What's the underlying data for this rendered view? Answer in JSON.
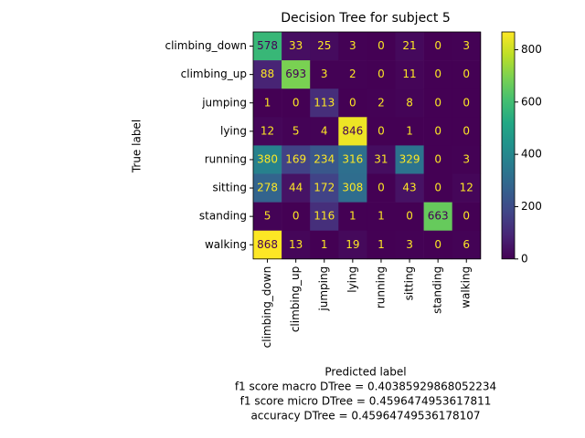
{
  "chart_data": {
    "type": "heatmap",
    "title": "Decision Tree for subject 5",
    "xlabel": "Predicted label",
    "ylabel": "True label",
    "annotations": [
      "f1 score macro DTree = 0.40385929868052234",
      "f1 score micro DTree = 0.4596474953617811",
      "accuracy DTree = 0.45964749536178107"
    ],
    "x_categories": [
      "climbing_down",
      "climbing_up",
      "jumping",
      "lying",
      "running",
      "sitting",
      "standing",
      "walking"
    ],
    "y_categories": [
      "climbing_down",
      "climbing_up",
      "jumping",
      "lying",
      "running",
      "sitting",
      "standing",
      "walking"
    ],
    "values": [
      [
        578,
        33,
        25,
        3,
        0,
        21,
        0,
        3
      ],
      [
        88,
        693,
        3,
        2,
        0,
        11,
        0,
        0
      ],
      [
        1,
        0,
        113,
        0,
        2,
        8,
        0,
        0
      ],
      [
        12,
        5,
        4,
        846,
        0,
        1,
        0,
        0
      ],
      [
        380,
        169,
        234,
        316,
        31,
        329,
        0,
        3
      ],
      [
        278,
        44,
        172,
        308,
        0,
        43,
        0,
        12
      ],
      [
        5,
        0,
        116,
        1,
        1,
        0,
        663,
        0
      ],
      [
        868,
        13,
        1,
        19,
        1,
        3,
        0,
        6
      ]
    ],
    "colormap": "viridis",
    "clim": [
      0,
      868
    ],
    "cticks": [
      0,
      200,
      400,
      600,
      800
    ]
  }
}
